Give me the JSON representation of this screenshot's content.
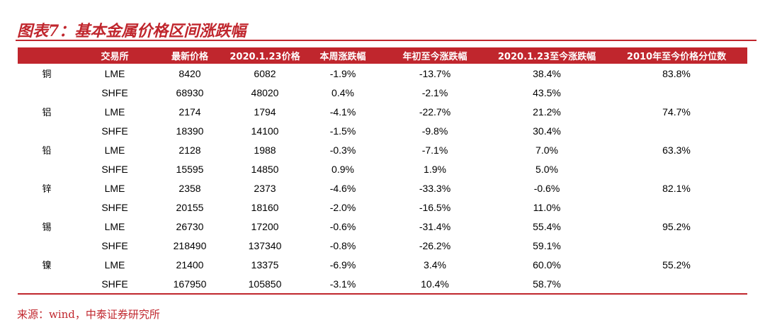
{
  "title": "图表7：基本金属价格区间涨跌幅",
  "accent_color": "#c0262d",
  "table": {
    "headers": [
      "",
      "交易所",
      "最新价格",
      "2020.1.23价格",
      "本周涨跌幅",
      "年初至今涨跌幅",
      "2020.1.23至今涨跌幅",
      "2010年至今价格分位数"
    ],
    "groups": [
      {
        "metal": "铜",
        "percentile": "83.8%",
        "rows": [
          {
            "exchange": "LME",
            "latest": "8420",
            "price_0123": "6082",
            "weekly": "-1.9%",
            "ytd": "-13.7%",
            "since_0123": "38.4%"
          },
          {
            "exchange": "SHFE",
            "latest": "68930",
            "price_0123": "48020",
            "weekly": "0.4%",
            "ytd": "-2.1%",
            "since_0123": "43.5%"
          }
        ]
      },
      {
        "metal": "铝",
        "percentile": "74.7%",
        "rows": [
          {
            "exchange": "LME",
            "latest": "2174",
            "price_0123": "1794",
            "weekly": "-4.1%",
            "ytd": "-22.7%",
            "since_0123": "21.2%"
          },
          {
            "exchange": "SHFE",
            "latest": "18390",
            "price_0123": "14100",
            "weekly": "-1.5%",
            "ytd": "-9.8%",
            "since_0123": "30.4%"
          }
        ]
      },
      {
        "metal": "铅",
        "percentile": "63.3%",
        "rows": [
          {
            "exchange": "LME",
            "latest": "2128",
            "price_0123": "1988",
            "weekly": "-0.3%",
            "ytd": "-7.1%",
            "since_0123": "7.0%"
          },
          {
            "exchange": "SHFE",
            "latest": "15595",
            "price_0123": "14850",
            "weekly": "0.9%",
            "ytd": "1.9%",
            "since_0123": "5.0%"
          }
        ]
      },
      {
        "metal": "锌",
        "percentile": "82.1%",
        "rows": [
          {
            "exchange": "LME",
            "latest": "2358",
            "price_0123": "2373",
            "weekly": "-4.6%",
            "ytd": "-33.3%",
            "since_0123": "-0.6%"
          },
          {
            "exchange": "SHFE",
            "latest": "20155",
            "price_0123": "18160",
            "weekly": "-2.0%",
            "ytd": "-16.5%",
            "since_0123": "11.0%"
          }
        ]
      },
      {
        "metal": "锡",
        "percentile": "95.2%",
        "rows": [
          {
            "exchange": "LME",
            "latest": "26730",
            "price_0123": "17200",
            "weekly": "-0.6%",
            "ytd": "-31.4%",
            "since_0123": "55.4%"
          },
          {
            "exchange": "SHFE",
            "latest": "218490",
            "price_0123": "137340",
            "weekly": "-0.8%",
            "ytd": "-26.2%",
            "since_0123": "59.1%"
          }
        ]
      },
      {
        "metal": "镍",
        "percentile": "55.2%",
        "rows": [
          {
            "exchange": "LME",
            "latest": "21400",
            "price_0123": "13375",
            "weekly": "-6.9%",
            "ytd": "3.4%",
            "since_0123": "60.0%"
          },
          {
            "exchange": "SHFE",
            "latest": "167950",
            "price_0123": "105850",
            "weekly": "-3.1%",
            "ytd": "10.4%",
            "since_0123": "58.7%"
          }
        ]
      }
    ]
  },
  "source": "来源：wind，中泰证券研究所"
}
